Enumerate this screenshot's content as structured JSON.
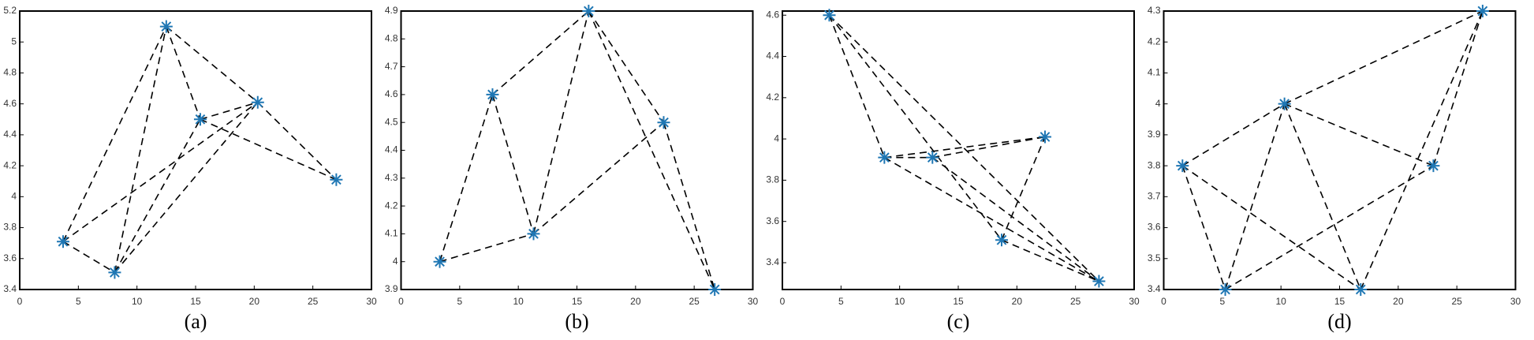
{
  "chart_data": [
    {
      "type": "scatter",
      "caption": "(a)",
      "x": [
        3.7,
        8.1,
        12.5,
        15.4,
        20.3,
        27.0
      ],
      "y": [
        3.71,
        3.51,
        5.1,
        4.5,
        4.61,
        4.11
      ],
      "edges": [
        [
          0,
          2
        ],
        [
          0,
          1
        ],
        [
          0,
          4
        ],
        [
          1,
          2
        ],
        [
          1,
          3
        ],
        [
          1,
          4
        ],
        [
          2,
          3
        ],
        [
          2,
          4
        ],
        [
          3,
          4
        ],
        [
          3,
          5
        ],
        [
          4,
          5
        ]
      ],
      "color": "#1f77b4",
      "xlim": [
        0,
        30
      ],
      "ylim": [
        3.4,
        5.2
      ],
      "xticks": [
        0,
        5,
        10,
        15,
        20,
        25,
        30
      ],
      "yticks": [
        3.4,
        3.6,
        3.8,
        4,
        4.2,
        4.4,
        4.6,
        4.8,
        5,
        5.2
      ]
    },
    {
      "type": "scatter",
      "caption": "(b)",
      "x": [
        3.3,
        7.8,
        11.3,
        16.0,
        22.4,
        26.75
      ],
      "y": [
        4.0,
        4.6,
        4.1,
        4.9,
        4.5,
        3.9
      ],
      "edges": [
        [
          0,
          1
        ],
        [
          0,
          2
        ],
        [
          1,
          2
        ],
        [
          1,
          3
        ],
        [
          2,
          3
        ],
        [
          2,
          4
        ],
        [
          3,
          4
        ],
        [
          3,
          5
        ],
        [
          4,
          5
        ]
      ],
      "color": "#1f77b4",
      "xlim": [
        0,
        30
      ],
      "ylim": [
        3.9,
        4.9
      ],
      "xticks": [
        0,
        5,
        10,
        15,
        20,
        25,
        30
      ],
      "yticks": [
        3.9,
        4,
        4.1,
        4.2,
        4.3,
        4.4,
        4.5,
        4.6,
        4.7,
        4.8,
        4.9
      ]
    },
    {
      "type": "scatter",
      "caption": "(c)",
      "x": [
        4.0,
        8.7,
        12.8,
        18.7,
        22.4,
        27.0
      ],
      "y": [
        4.6,
        3.91,
        3.91,
        3.51,
        4.01,
        3.31
      ],
      "edges": [
        [
          0,
          1
        ],
        [
          0,
          3
        ],
        [
          0,
          5
        ],
        [
          1,
          2
        ],
        [
          1,
          4
        ],
        [
          1,
          5
        ],
        [
          2,
          4
        ],
        [
          2,
          5
        ],
        [
          3,
          4
        ],
        [
          3,
          5
        ]
      ],
      "color": "#1f77b4",
      "xlim": [
        0,
        30
      ],
      "ylim": [
        3.27,
        4.62
      ],
      "xticks": [
        0,
        5,
        10,
        15,
        20,
        25,
        30
      ],
      "yticks": [
        3.4,
        3.6,
        3.8,
        4,
        4.2,
        4.4,
        4.6
      ]
    },
    {
      "type": "scatter",
      "caption": "(d)",
      "x": [
        1.6,
        5.25,
        10.3,
        16.8,
        23.0,
        27.2
      ],
      "y": [
        3.8,
        3.4,
        4.0,
        3.4,
        3.8,
        4.3
      ],
      "edges": [
        [
          0,
          1
        ],
        [
          0,
          2
        ],
        [
          0,
          3
        ],
        [
          1,
          2
        ],
        [
          1,
          4
        ],
        [
          2,
          3
        ],
        [
          2,
          4
        ],
        [
          2,
          5
        ],
        [
          3,
          5
        ],
        [
          4,
          5
        ]
      ],
      "color": "#1f77b4",
      "xlim": [
        0,
        30
      ],
      "ylim": [
        3.4,
        4.3
      ],
      "xticks": [
        0,
        5,
        10,
        15,
        20,
        25,
        30
      ],
      "yticks": [
        3.4,
        3.5,
        3.6,
        3.7,
        3.8,
        3.9,
        4,
        4.1,
        4.2,
        4.3
      ]
    }
  ]
}
